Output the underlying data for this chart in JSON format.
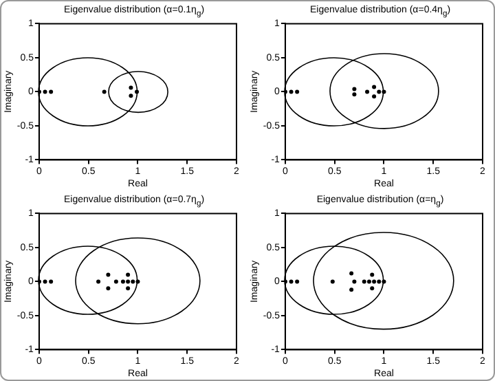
{
  "chart_data": [
    {
      "type": "scatter",
      "title": "Eigenvalue distribution (α=0.1η$_{g}$)",
      "xlabel": "Real",
      "ylabel": "Imaginary",
      "xlim": [
        0,
        2
      ],
      "ylim": [
        -1,
        1
      ],
      "xticks": [
        0,
        0.5,
        1,
        1.5,
        2
      ],
      "yticks": [
        -1,
        -0.5,
        0,
        0.5,
        1
      ],
      "grid": false,
      "series": [
        {
          "type": "scatter",
          "color": "#000000",
          "marker": "circle",
          "x": [
            0,
            0.06,
            0.12,
            0.66,
            0.93,
            0.93,
            0.99
          ],
          "values": [
            0,
            0,
            0,
            0,
            0.06,
            -0.06,
            0
          ]
        }
      ]
    },
    {
      "type": "scatter",
      "title": "Eigenvalue distribution (α=0.4η$_{g}$)",
      "xlabel": "Real",
      "ylabel": "Imaginary",
      "xlim": [
        0,
        2
      ],
      "ylim": [
        -1,
        1
      ],
      "xticks": [
        0,
        0.5,
        1,
        1.5,
        2
      ],
      "yticks": [
        -1,
        -0.5,
        0,
        0.5,
        1
      ],
      "grid": false,
      "series": [
        {
          "type": "scatter",
          "color": "#000000",
          "marker": "circle",
          "x": [
            0,
            0.06,
            0.12,
            0.7,
            0.7,
            0.83,
            0.9,
            0.9,
            0.95,
            1
          ],
          "values": [
            0,
            0,
            0,
            0.04,
            -0.04,
            0,
            0.07,
            -0.07,
            0,
            0
          ]
        }
      ]
    },
    {
      "type": "scatter",
      "title": "Eigenvalue distribution (α=0.7η$_{g}$)",
      "xlabel": "Real",
      "ylabel": "Imaginary",
      "xlim": [
        0,
        2
      ],
      "ylim": [
        -1,
        1
      ],
      "xticks": [
        0,
        0.5,
        1,
        1.5,
        2
      ],
      "yticks": [
        -1,
        -0.5,
        0,
        0.5,
        1
      ],
      "grid": false,
      "series": [
        {
          "type": "scatter",
          "color": "#000000",
          "marker": "circle",
          "x": [
            0,
            0.06,
            0.12,
            0.6,
            0.7,
            0.7,
            0.78,
            0.85,
            0.9,
            0.9,
            0.9,
            0.95,
            1
          ],
          "values": [
            0,
            0,
            0,
            0,
            0.1,
            -0.1,
            0,
            0,
            0.1,
            -0.1,
            0,
            0,
            0
          ]
        }
      ]
    },
    {
      "type": "scatter",
      "title": "Eigenvalue distribution (α=η$_{g}$)",
      "xlabel": "Real",
      "ylabel": "Imaginary",
      "xlim": [
        0,
        2
      ],
      "ylim": [
        -1,
        1
      ],
      "xticks": [
        0,
        0.5,
        1,
        1.5,
        2
      ],
      "yticks": [
        -1,
        -0.5,
        0,
        0.5,
        1
      ],
      "grid": false,
      "series": [
        {
          "type": "scatter",
          "color": "#000000",
          "marker": "circle",
          "x": [
            0,
            0.06,
            0.12,
            0.48,
            0.67,
            0.67,
            0.7,
            0.8,
            0.88,
            0.88,
            0.85,
            0.9,
            0.95,
            1
          ],
          "values": [
            0,
            0,
            0,
            0,
            0.12,
            -0.12,
            0,
            0,
            0.1,
            -0.1,
            0,
            0,
            0,
            0
          ]
        }
      ]
    }
  ]
}
